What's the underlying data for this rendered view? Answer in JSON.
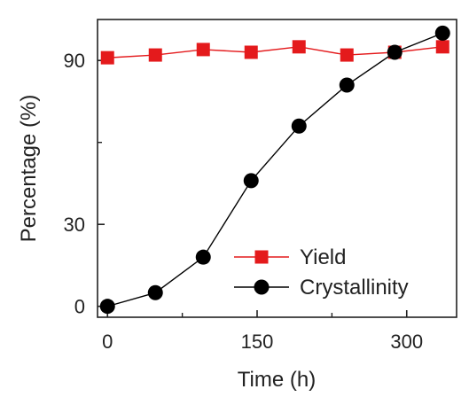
{
  "chart_data": {
    "type": "line",
    "xlabel": "Time (h)",
    "ylabel": "Percentage (%)",
    "xlim": [
      -10,
      350
    ],
    "ylim": [
      -4,
      105
    ],
    "x_ticks": [
      0,
      150,
      300
    ],
    "x_minor_ticks": [
      75,
      225
    ],
    "y_ticks": [
      0,
      30,
      90
    ],
    "y_minor_ticks": [
      60
    ],
    "grid": false,
    "legend_position": "bottom-right",
    "series": [
      {
        "name": "Yield",
        "color": "#e41a1c",
        "marker": "square",
        "x": [
          0,
          48,
          96,
          144,
          192,
          240,
          288,
          336
        ],
        "y": [
          91,
          92,
          94,
          93,
          95,
          92,
          93,
          95
        ]
      },
      {
        "name": "Crystallinity",
        "color": "#000000",
        "marker": "circle",
        "x": [
          0,
          48,
          96,
          144,
          192,
          240,
          288,
          336
        ],
        "y": [
          0,
          5,
          18,
          46,
          66,
          81,
          93,
          100
        ]
      }
    ]
  }
}
